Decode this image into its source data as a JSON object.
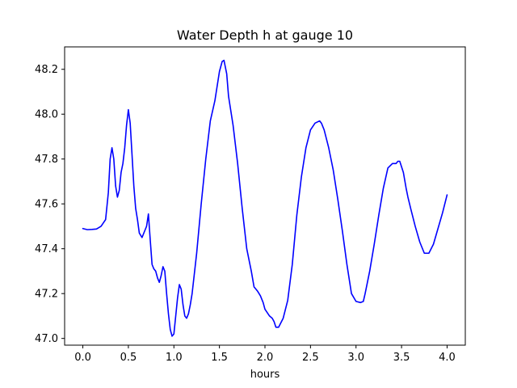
{
  "chart_data": {
    "type": "line",
    "title": "Water Depth h at gauge 10",
    "xlabel": "hours",
    "ylabel": "",
    "xlim": [
      -0.2,
      4.2
    ],
    "ylim": [
      46.97,
      48.3
    ],
    "xticks": [
      0.0,
      0.5,
      1.0,
      1.5,
      2.0,
      2.5,
      3.0,
      3.5,
      4.0
    ],
    "yticks": [
      47.0,
      47.2,
      47.4,
      47.6,
      47.8,
      48.0,
      48.2
    ],
    "xtick_labels": [
      "0.0",
      "0.5",
      "1.0",
      "1.5",
      "2.0",
      "2.5",
      "3.0",
      "3.5",
      "4.0"
    ],
    "ytick_labels": [
      "47.0",
      "47.2",
      "47.4",
      "47.6",
      "47.8",
      "48.0",
      "48.2"
    ],
    "grid": false,
    "legend": "none",
    "colors": {
      "series": "#0000ff",
      "axes": "#000000",
      "background": "#ffffff"
    },
    "series": [
      {
        "color": "#0000ff",
        "x": [
          0.0,
          0.05,
          0.1,
          0.15,
          0.2,
          0.25,
          0.28,
          0.3,
          0.32,
          0.34,
          0.36,
          0.38,
          0.4,
          0.42,
          0.44,
          0.46,
          0.48,
          0.5,
          0.52,
          0.54,
          0.56,
          0.58,
          0.6,
          0.62,
          0.65,
          0.68,
          0.7,
          0.72,
          0.74,
          0.76,
          0.78,
          0.8,
          0.82,
          0.84,
          0.86,
          0.88,
          0.9,
          0.92,
          0.94,
          0.96,
          0.98,
          1.0,
          1.02,
          1.04,
          1.06,
          1.08,
          1.1,
          1.12,
          1.14,
          1.16,
          1.18,
          1.2,
          1.25,
          1.3,
          1.35,
          1.4,
          1.45,
          1.5,
          1.53,
          1.55,
          1.58,
          1.6,
          1.65,
          1.7,
          1.75,
          1.8,
          1.85,
          1.88,
          1.9,
          1.92,
          1.95,
          1.98,
          2.0,
          2.05,
          2.08,
          2.1,
          2.12,
          2.15,
          2.2,
          2.25,
          2.3,
          2.35,
          2.4,
          2.45,
          2.5,
          2.55,
          2.6,
          2.62,
          2.65,
          2.7,
          2.75,
          2.8,
          2.85,
          2.9,
          2.95,
          3.0,
          3.05,
          3.08,
          3.1,
          3.15,
          3.2,
          3.25,
          3.3,
          3.35,
          3.4,
          3.44,
          3.46,
          3.48,
          3.5,
          3.52,
          3.55,
          3.57,
          3.6,
          3.65,
          3.7,
          3.75,
          3.78,
          3.8,
          3.85,
          3.9,
          3.95,
          4.0
        ],
        "y": [
          47.49,
          47.485,
          47.486,
          47.488,
          47.5,
          47.53,
          47.65,
          47.8,
          47.85,
          47.8,
          47.68,
          47.63,
          47.66,
          47.74,
          47.78,
          47.85,
          47.95,
          48.02,
          47.96,
          47.82,
          47.68,
          47.58,
          47.53,
          47.47,
          47.45,
          47.48,
          47.5,
          47.555,
          47.44,
          47.33,
          47.31,
          47.3,
          47.27,
          47.25,
          47.28,
          47.32,
          47.3,
          47.2,
          47.11,
          47.04,
          47.01,
          47.02,
          47.1,
          47.18,
          47.24,
          47.22,
          47.15,
          47.1,
          47.09,
          47.11,
          47.15,
          47.2,
          47.38,
          47.6,
          47.8,
          47.97,
          48.06,
          48.19,
          48.235,
          48.24,
          48.18,
          48.08,
          47.95,
          47.78,
          47.58,
          47.4,
          47.3,
          47.23,
          47.22,
          47.21,
          47.19,
          47.16,
          47.13,
          47.1,
          47.09,
          47.075,
          47.05,
          47.05,
          47.09,
          47.17,
          47.33,
          47.55,
          47.72,
          47.85,
          47.93,
          47.96,
          47.97,
          47.96,
          47.93,
          47.85,
          47.75,
          47.62,
          47.48,
          47.33,
          47.2,
          47.165,
          47.16,
          47.165,
          47.2,
          47.3,
          47.42,
          47.55,
          47.67,
          47.76,
          47.78,
          47.78,
          47.79,
          47.79,
          47.765,
          47.74,
          47.67,
          47.63,
          47.58,
          47.5,
          47.43,
          47.38,
          47.38,
          47.38,
          47.42,
          47.49,
          47.56,
          47.64
        ]
      }
    ]
  }
}
